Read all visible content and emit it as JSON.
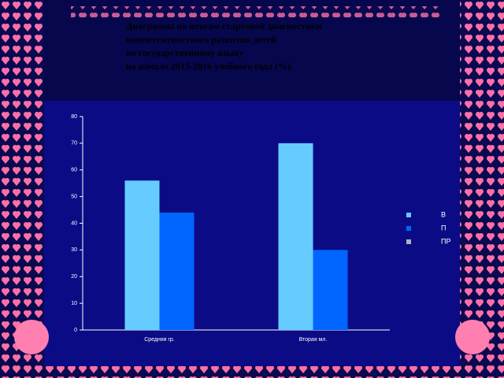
{
  "chart_data": {
    "type": "bar",
    "title_lines": [
      "Диаграмма по итогам стартовой диагностики",
      "компетентностного развития детей",
      "по государственному языку",
      "на начало 2015-2016 учебного года (%)."
    ],
    "categories": [
      "Средняя гр.",
      "Вторая мл."
    ],
    "series": [
      {
        "name": "В",
        "color": "#66ccff",
        "values": [
          56,
          70
        ]
      },
      {
        "name": "П",
        "color": "#0066ff",
        "values": [
          44,
          30
        ]
      },
      {
        "name": "ПР",
        "color": "#b0b0c0",
        "values": [
          0,
          0
        ]
      }
    ],
    "ylim": [
      0,
      80
    ],
    "yticks": [
      0,
      10,
      20,
      30,
      40,
      50,
      60,
      70,
      80
    ],
    "grid": false,
    "legend": "right"
  }
}
